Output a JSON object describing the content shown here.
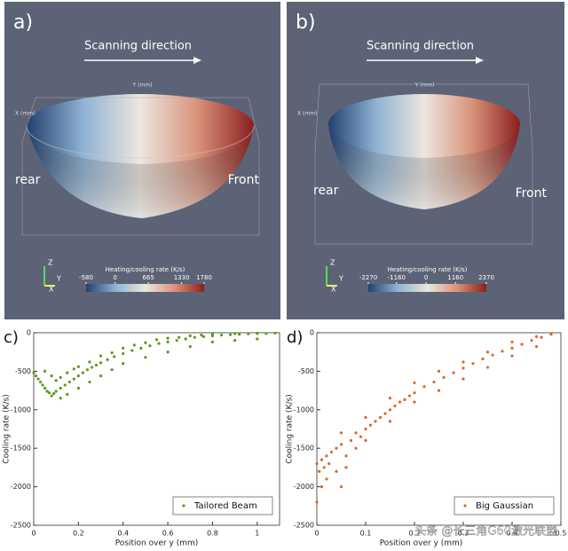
{
  "renders": [
    {
      "letter": "a)",
      "direction": "Scanning direction",
      "left_label": "rear",
      "right_label": "Front",
      "axis_top": "Y (mm)",
      "axis_side": "X (mm)",
      "colorbar_title": "Heating/cooling rate (K/s)",
      "colorbar_ticks": [
        -580,
        0,
        665,
        1330,
        1780
      ],
      "triad": [
        "Z",
        "Y",
        "X"
      ]
    },
    {
      "letter": "b)",
      "direction": "Scanning direction",
      "left_label": "rear",
      "right_label": "Front",
      "axis_top": "Y (mm)",
      "axis_side": "X (mm)",
      "colorbar_title": "Heating/cooling rate (K/s)",
      "colorbar_ticks": [
        -2270,
        -1160,
        0,
        1160,
        2370
      ],
      "triad": [
        "Z",
        "Y",
        "X"
      ]
    }
  ],
  "chart_data": [
    {
      "type": "scatter",
      "letter": "c)",
      "xlabel": "Position over y (mm)",
      "ylabel": "Cooling rate (K/s)",
      "xlim": [
        0,
        1.1
      ],
      "xticks": [
        0,
        0.2,
        0.4,
        0.6,
        0.8,
        1
      ],
      "ylim": [
        -2500,
        0
      ],
      "yticks": [
        -2500,
        -2000,
        -1500,
        -1000,
        -500,
        0
      ],
      "legend": "lower right",
      "x": [
        0,
        0.01,
        0.02,
        0.03,
        0.04,
        0.05,
        0.06,
        0.07,
        0.08,
        0.09,
        0.1,
        0.12,
        0.14,
        0.16,
        0.18,
        0.2,
        0.22,
        0.24,
        0.26,
        0.28,
        0.3,
        0.33,
        0.36,
        0.4,
        0.44,
        0.48,
        0.52,
        0.56,
        0.6,
        0.64,
        0.68,
        0.72,
        0.76,
        0.8,
        0.84,
        0.88,
        0.92,
        0.96,
        1.0,
        1.04,
        1.08,
        0.05,
        0.08,
        0.1,
        0.12,
        0.15,
        0.18,
        0.2,
        0.25,
        0.3,
        0.35,
        0.4,
        0.45,
        0.5,
        0.55,
        0.6,
        0.65,
        0.7,
        0.75,
        0.8,
        0.9,
        1.0,
        0.12,
        0.15,
        0.2,
        0.25,
        0.3,
        0.35,
        0.4,
        0.5,
        0.6,
        0.7,
        0.8,
        0.9,
        1.0
      ],
      "series": [
        {
          "name": "Tailored Beam",
          "color": "#5a9a1c",
          "values": [
            -520,
            -560,
            -600,
            -640,
            -680,
            -720,
            -760,
            -780,
            -820,
            -790,
            -760,
            -720,
            -680,
            -640,
            -600,
            -560,
            -520,
            -480,
            -450,
            -420,
            -390,
            -350,
            -310,
            -270,
            -230,
            -200,
            -170,
            -140,
            -120,
            -100,
            -80,
            -60,
            -50,
            -40,
            -30,
            -25,
            -20,
            -15,
            -10,
            -10,
            -5,
            -500,
            -560,
            -620,
            -580,
            -520,
            -470,
            -440,
            -380,
            -300,
            -260,
            -200,
            -160,
            -130,
            -90,
            -70,
            -60,
            -40,
            -30,
            -20,
            -10,
            -5,
            -850,
            -800,
            -720,
            -640,
            -560,
            -480,
            -400,
            -320,
            -250,
            -180,
            -120,
            -100,
            -80
          ]
        }
      ]
    },
    {
      "type": "scatter",
      "letter": "d)",
      "xlabel": "Position over y (mm)",
      "ylabel": "Cooling rate (K/s)",
      "xlim": [
        0,
        0.5
      ],
      "xticks": [
        0,
        0.1,
        0.2,
        0.3,
        0.4,
        0.5
      ],
      "ylim": [
        -2500,
        0
      ],
      "yticks": [
        -2500,
        -2000,
        -1500,
        -1000,
        -500,
        0
      ],
      "legend": "lower right",
      "x": [
        0,
        0.005,
        0.01,
        0.015,
        0.02,
        0.025,
        0.03,
        0.04,
        0.05,
        0.06,
        0.07,
        0.08,
        0.09,
        0.1,
        0.11,
        0.12,
        0.13,
        0.14,
        0.15,
        0.16,
        0.17,
        0.18,
        0.19,
        0.2,
        0.22,
        0.24,
        0.26,
        0.28,
        0.3,
        0.32,
        0.34,
        0.36,
        0.38,
        0.4,
        0.42,
        0.44,
        0.46,
        0.48,
        0,
        0.01,
        0.02,
        0.04,
        0.05,
        0.06,
        0.08,
        0.1,
        0.15,
        0.2,
        0.25,
        0.3,
        0.35,
        0.4,
        0.45,
        0.05,
        0.1,
        0.15,
        0.2,
        0.25,
        0.3,
        0.35,
        0.4,
        0.45
      ],
      "series": [
        {
          "name": "Big Gaussian",
          "color": "#d9692a",
          "values": [
            -1700,
            -1800,
            -1650,
            -1750,
            -1600,
            -1700,
            -1550,
            -1500,
            -1450,
            -1600,
            -1400,
            -1300,
            -1350,
            -1250,
            -1200,
            -1150,
            -1100,
            -1050,
            -1000,
            -950,
            -900,
            -870,
            -820,
            -780,
            -700,
            -640,
            -580,
            -520,
            -460,
            -400,
            -340,
            -290,
            -240,
            -200,
            -150,
            -100,
            -60,
            -20,
            -2200,
            -2000,
            -1900,
            -1800,
            -2000,
            -1750,
            -1500,
            -1400,
            -1150,
            -900,
            -750,
            -600,
            -450,
            -300,
            -180,
            -1300,
            -1100,
            -850,
            -650,
            -500,
            -380,
            -250,
            -120,
            -50
          ]
        }
      ]
    }
  ],
  "watermark": "头条 @长三角G60激光联盟"
}
